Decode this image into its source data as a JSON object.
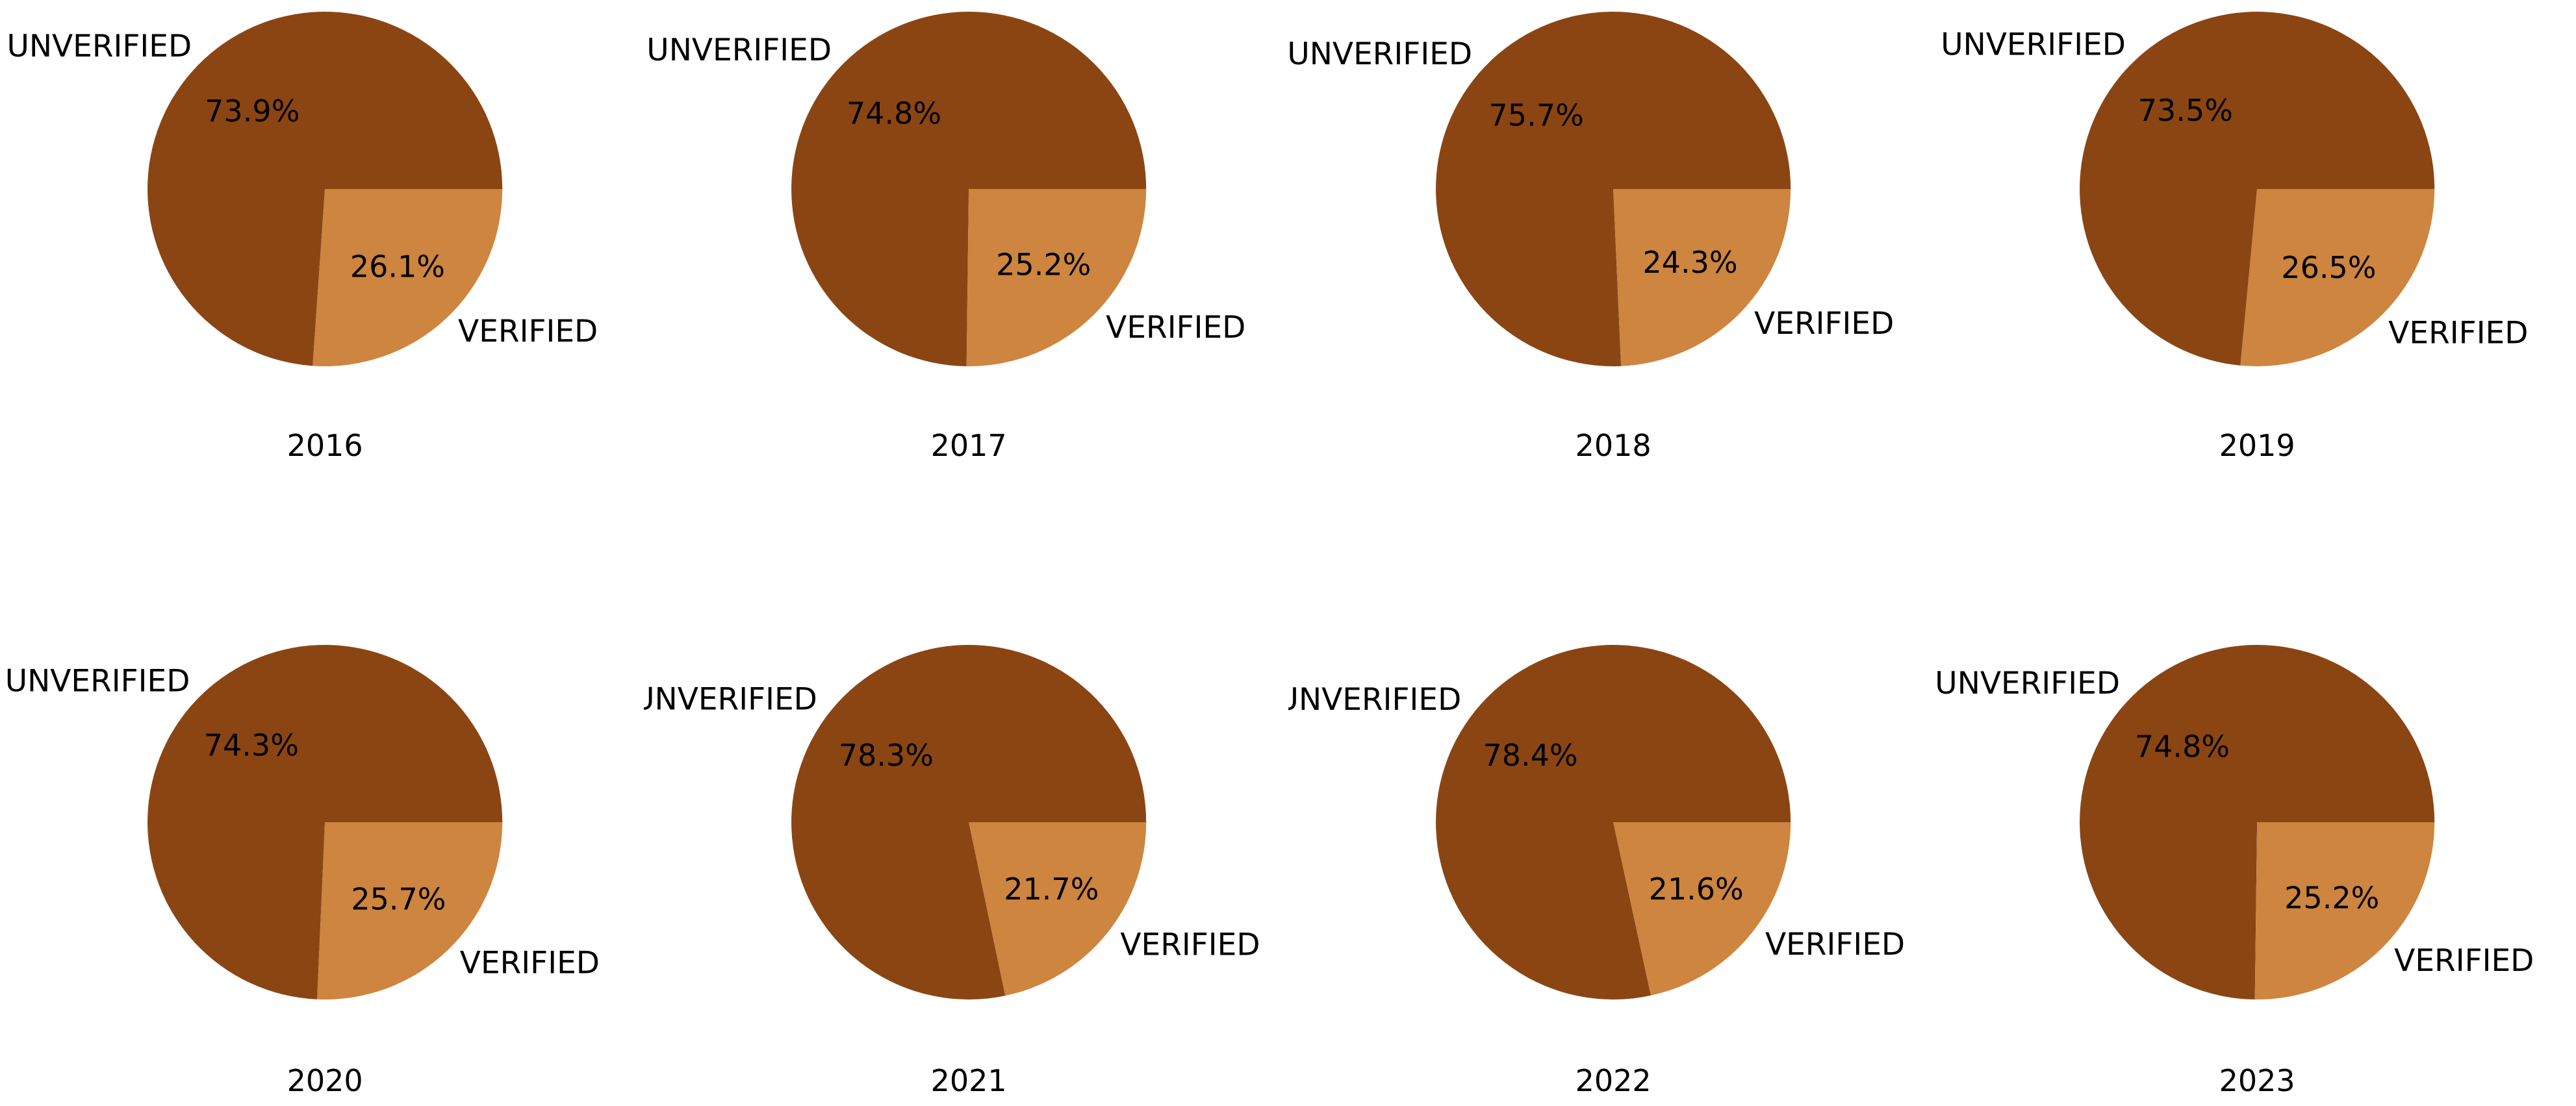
{
  "figure": {
    "background": "#ffffff",
    "slice_color_unverified": "#8B4513",
    "slice_color_verified": "#CD853F",
    "text_color": "#000000"
  },
  "layout_hints": {
    "rows": 2,
    "cols": 4,
    "legend": "none",
    "category_labels_outside": true,
    "percent_labels_inside": true,
    "start_angle": 0,
    "direction": "counterclockwise"
  },
  "chart_data": [
    {
      "type": "pie",
      "title": "2016",
      "labels": [
        "UNVERIFIED",
        "VERIFIED"
      ],
      "values": [
        73.9,
        26.1
      ],
      "value_labels": [
        "73.9%",
        "26.1%"
      ],
      "colors": [
        "#8B4513",
        "#CD853F"
      ]
    },
    {
      "type": "pie",
      "title": "2017",
      "labels": [
        "UNVERIFIED",
        "VERIFIED"
      ],
      "values": [
        74.8,
        25.2
      ],
      "value_labels": [
        "74.8%",
        "25.2%"
      ],
      "colors": [
        "#8B4513",
        "#CD853F"
      ]
    },
    {
      "type": "pie",
      "title": "2018",
      "labels": [
        "UNVERIFIED",
        "VERIFIED"
      ],
      "values": [
        75.7,
        24.3
      ],
      "value_labels": [
        "75.7%",
        "24.3%"
      ],
      "colors": [
        "#8B4513",
        "#CD853F"
      ]
    },
    {
      "type": "pie",
      "title": "2019",
      "labels": [
        "UNVERIFIED",
        "VERIFIED"
      ],
      "values": [
        73.5,
        26.5
      ],
      "value_labels": [
        "73.5%",
        "26.5%"
      ],
      "colors": [
        "#8B4513",
        "#CD853F"
      ]
    },
    {
      "type": "pie",
      "title": "2020",
      "labels": [
        "UNVERIFIED",
        "VERIFIED"
      ],
      "values": [
        74.3,
        25.7
      ],
      "value_labels": [
        "74.3%",
        "25.7%"
      ],
      "colors": [
        "#8B4513",
        "#CD853F"
      ]
    },
    {
      "type": "pie",
      "title": "2021",
      "labels": [
        "UNVERIFIED",
        "VERIFIED"
      ],
      "values": [
        78.3,
        21.7
      ],
      "value_labels": [
        "78.3%",
        "21.7%"
      ],
      "colors": [
        "#8B4513",
        "#CD853F"
      ]
    },
    {
      "type": "pie",
      "title": "2022",
      "labels": [
        "UNVERIFIED",
        "VERIFIED"
      ],
      "values": [
        78.4,
        21.6
      ],
      "value_labels": [
        "78.4%",
        "21.6%"
      ],
      "colors": [
        "#8B4513",
        "#CD853F"
      ]
    },
    {
      "type": "pie",
      "title": "2023",
      "labels": [
        "UNVERIFIED",
        "VERIFIED"
      ],
      "values": [
        74.8,
        25.2
      ],
      "value_labels": [
        "74.8%",
        "25.2%"
      ],
      "colors": [
        "#8B4513",
        "#CD853F"
      ]
    }
  ]
}
